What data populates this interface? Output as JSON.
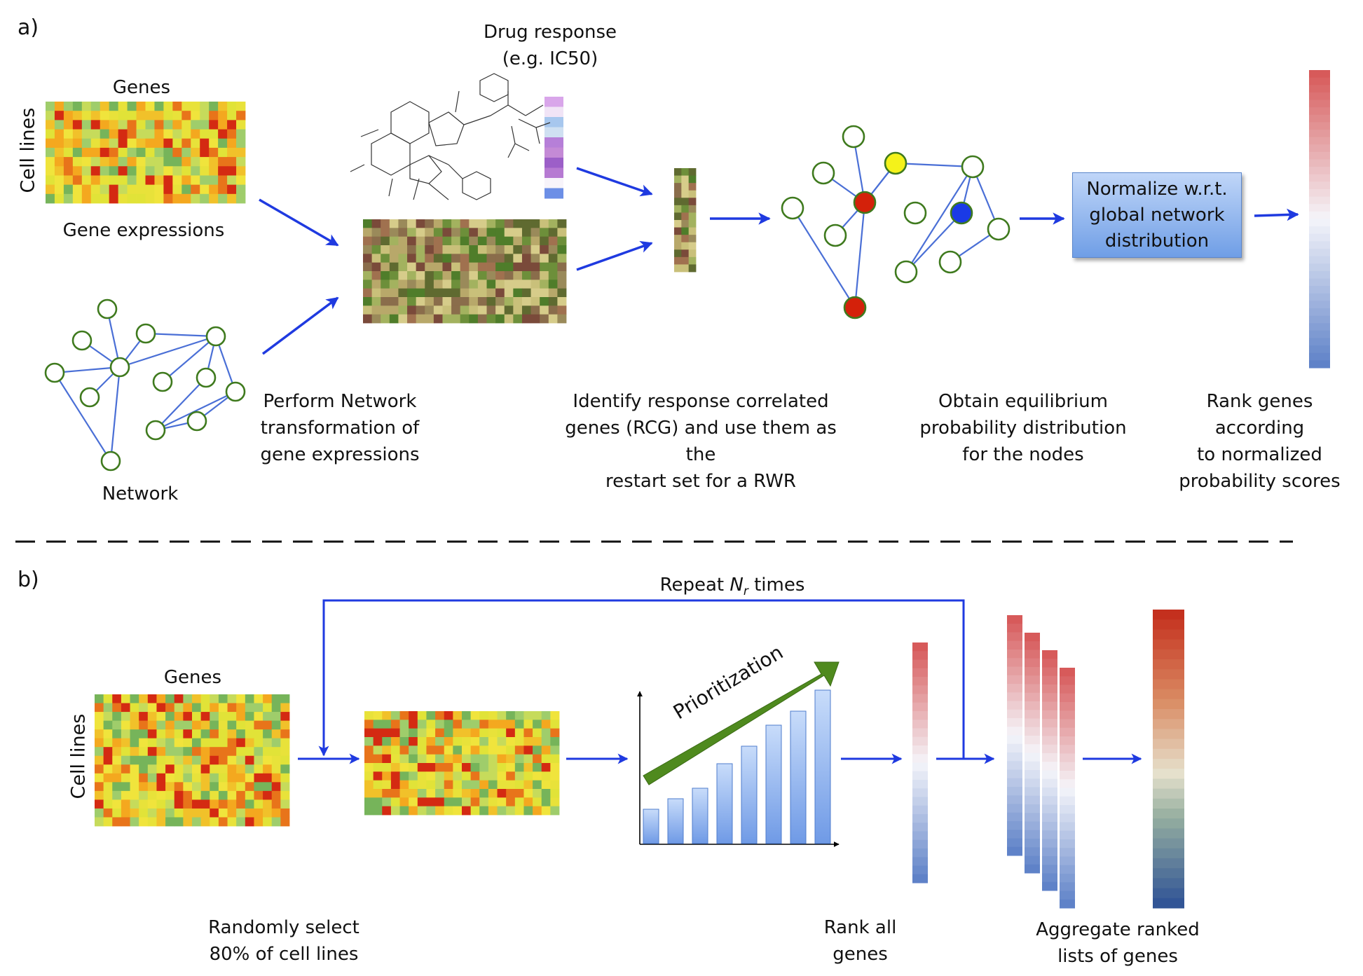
{
  "panels": {
    "a": "a)",
    "b": "b)"
  },
  "panel_a": {
    "genes_label": "Genes",
    "cell_lines_label": "Cell lines",
    "gene_expressions_label": "Gene expressions",
    "network_label": "Network",
    "drug_response_label": "Drug response\n(e.g. IC50)",
    "step1_text": "Perform Network\ntransformation of\ngene expressions",
    "step2_text": "Identify response correlated\ngenes (RCG) and use them as the\nrestart set for a RWR",
    "step3_text": "Obtain equilibrium\nprobability distribution\nfor the nodes",
    "normalize_box": "Normalize w.r.t.\nglobal network\ndistribution",
    "step4_text": "Rank genes according\nto normalized\nprobability scores"
  },
  "panel_b": {
    "genes_label": "Genes",
    "cell_lines_label": "Cell lines",
    "repeat_prefix": "Repeat ",
    "repeat_var": "N",
    "repeat_sub": "r",
    "repeat_suffix": " times",
    "prioritization_label": "Prioritization",
    "randomly_select_text": "Randomly select\n80% of cell lines",
    "rank_all_text": "Rank all\ngenes",
    "aggregate_text": "Aggregate ranked\nlists of genes"
  },
  "colors": {
    "arrow": "#1f3ae0",
    "node_stroke": "#3f7a1e",
    "edge": "#4a6fd6",
    "node_red": "#d4210a",
    "node_yellow": "#f4f21a",
    "node_blue": "#1a3ae6",
    "green_arrow": "#4f8a1e"
  },
  "icons": {
    "molecule": "chemical-structure-icon"
  }
}
